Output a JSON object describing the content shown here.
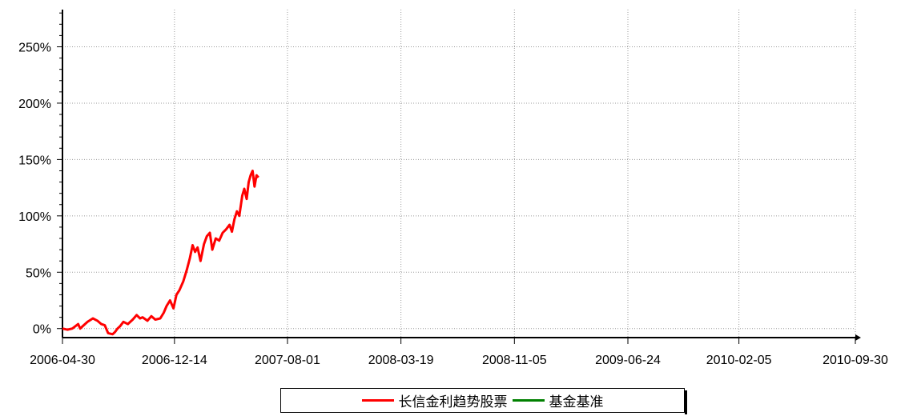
{
  "chart_data": {
    "type": "line",
    "title": "",
    "xlabel": "",
    "ylabel": "",
    "x_ticks": [
      "2006-04-30",
      "2006-12-14",
      "2007-08-01",
      "2008-03-19",
      "2008-11-05",
      "2009-06-24",
      "2010-02-05",
      "2010-09-30"
    ],
    "xlim": [
      "2006-04-30",
      "2010-09-30"
    ],
    "y_ticks": [
      "0%",
      "50%",
      "100%",
      "150%",
      "200%",
      "250%"
    ],
    "ylim": [
      -8,
      283
    ],
    "grid": true,
    "legend_position": "bottom-center",
    "series": [
      {
        "name": "长信金利趋势股票",
        "color": "#ff0000",
        "x": [
          "2006-04-30",
          "2006-05-10",
          "2006-05-20",
          "2006-06-01",
          "2006-06-05",
          "2006-06-10",
          "2006-06-20",
          "2006-07-01",
          "2006-07-10",
          "2006-07-18",
          "2006-07-25",
          "2006-08-01",
          "2006-08-10",
          "2006-08-15",
          "2006-08-20",
          "2006-08-25",
          "2006-09-01",
          "2006-09-10",
          "2006-09-20",
          "2006-09-28",
          "2006-10-05",
          "2006-10-10",
          "2006-10-20",
          "2006-10-28",
          "2006-11-05",
          "2006-11-15",
          "2006-11-22",
          "2006-11-28",
          "2006-12-05",
          "2006-12-12",
          "2006-12-18",
          "2006-12-24",
          "2007-01-01",
          "2007-01-08",
          "2007-01-14",
          "2007-01-20",
          "2007-01-25",
          "2007-01-30",
          "2007-02-05",
          "2007-02-12",
          "2007-02-18",
          "2007-02-24",
          "2007-03-01",
          "2007-03-08",
          "2007-03-15",
          "2007-03-22",
          "2007-03-29",
          "2007-04-05",
          "2007-04-10",
          "2007-04-15",
          "2007-04-20",
          "2007-04-25",
          "2007-05-01",
          "2007-05-05",
          "2007-05-10",
          "2007-05-14",
          "2007-05-18",
          "2007-05-22",
          "2007-05-26",
          "2007-05-30",
          "2007-06-03"
        ],
        "values": [
          0,
          -1,
          0,
          4,
          0,
          2,
          6,
          9,
          7,
          4,
          3,
          -4,
          -5,
          -3,
          0,
          2,
          6,
          4,
          8,
          12,
          9,
          10,
          7,
          11,
          8,
          9,
          14,
          20,
          25,
          18,
          30,
          34,
          42,
          52,
          62,
          74,
          68,
          72,
          60,
          75,
          82,
          85,
          70,
          80,
          78,
          85,
          88,
          92,
          86,
          97,
          104,
          100,
          118,
          124,
          115,
          130,
          136,
          140,
          126,
          136,
          134
        ]
      },
      {
        "name": "基金基准",
        "color": "#008000",
        "x": [],
        "values": []
      }
    ]
  }
}
